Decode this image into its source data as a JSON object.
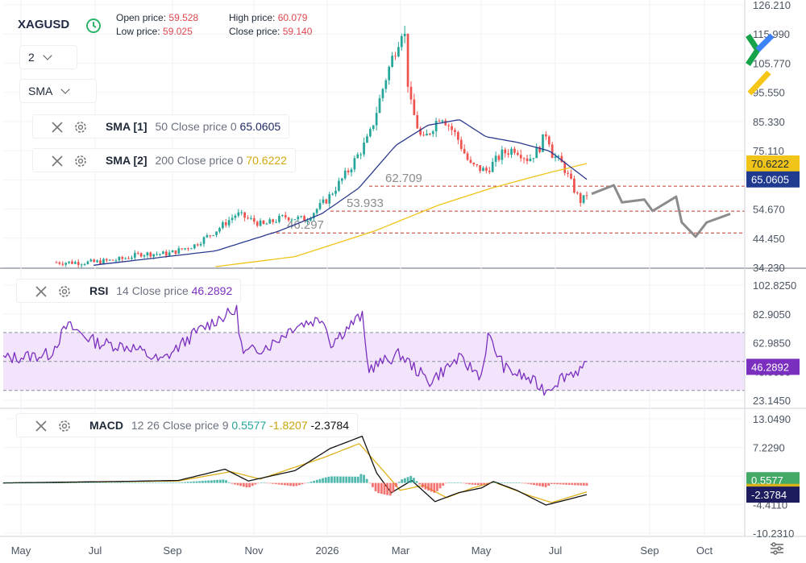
{
  "header": {
    "symbol": "XAGUSD",
    "open_label": "Open price:",
    "open_value": "59.528",
    "high_label": "High price:",
    "high_value": "60.079",
    "low_label": "Low price:",
    "low_value": "59.025",
    "close_label": "Close price:",
    "close_value": "59.140"
  },
  "controls": {
    "interval_value": "2",
    "indicator_value": "SMA"
  },
  "legends": {
    "sma1": {
      "name": "SMA [1]",
      "params": "50 Close price 0",
      "value": "65.0605"
    },
    "sma2": {
      "name": "SMA [2]",
      "params": "200 Close price 0",
      "value": "70.6222"
    },
    "rsi": {
      "name": "RSI",
      "params": "14 Close price",
      "value": "46.2892"
    },
    "macd": {
      "name": "MACD",
      "params": "12 26 Close price 9",
      "v1": "0.5577",
      "v2": "-1.8207",
      "v3": "-2.3784"
    }
  },
  "colors": {
    "up": "#26a69a",
    "down": "#ef5350",
    "sma50": "#2b3a8f",
    "sma200": "#f0c419",
    "rsi": "#7b2fbf",
    "rsi_band": "#f1e4fb",
    "macd": "#111111",
    "signal": "#e0b21c",
    "projection": "#8c8c8c",
    "level": "#c0392b"
  },
  "chart_data": [
    {
      "type": "candlestick",
      "panel": "price",
      "symbol": "XAGUSD",
      "x_ticks": [
        "May",
        "Jul",
        "Sep",
        "Nov",
        "2026",
        "Mar",
        "May",
        "Jul",
        "Sep",
        "Oct"
      ],
      "y_ticks": [
        "126.210",
        "115.990",
        "105.770",
        "95.550",
        "85.330",
        "75.110",
        "64.890",
        "54.670",
        "44.450",
        "34.230"
      ],
      "ylim": [
        34.23,
        126.21
      ],
      "last_values": {
        "sma200": "70.6222",
        "sma50": "65.0605"
      },
      "levels": [
        {
          "label": "62.709",
          "value": 62.709
        },
        {
          "label": "53.933",
          "value": 53.933
        },
        {
          "label": "46.297",
          "value": 46.297
        }
      ],
      "anchors": [
        {
          "t": 0.07,
          "v": 36
        },
        {
          "t": 0.12,
          "v": 37
        },
        {
          "t": 0.16,
          "v": 39
        },
        {
          "t": 0.21,
          "v": 39
        },
        {
          "t": 0.26,
          "v": 42
        },
        {
          "t": 0.3,
          "v": 47
        },
        {
          "t": 0.34,
          "v": 53
        },
        {
          "t": 0.39,
          "v": 49
        },
        {
          "t": 0.43,
          "v": 52
        },
        {
          "t": 0.47,
          "v": 51
        },
        {
          "t": 0.51,
          "v": 58
        },
        {
          "t": 0.55,
          "v": 68
        },
        {
          "t": 0.59,
          "v": 80
        },
        {
          "t": 0.62,
          "v": 100
        },
        {
          "t": 0.655,
          "v": 120
        },
        {
          "t": 0.665,
          "v": 93
        },
        {
          "t": 0.69,
          "v": 78
        },
        {
          "t": 0.725,
          "v": 88
        },
        {
          "t": 0.755,
          "v": 80
        },
        {
          "t": 0.78,
          "v": 70
        },
        {
          "t": 0.81,
          "v": 68
        },
        {
          "t": 0.84,
          "v": 74
        },
        {
          "t": 0.865,
          "v": 76
        },
        {
          "t": 0.89,
          "v": 72
        },
        {
          "t": 0.91,
          "v": 76
        },
        {
          "t": 0.925,
          "v": 82
        },
        {
          "t": 0.935,
          "v": 74
        },
        {
          "t": 0.955,
          "v": 70
        },
        {
          "t": 0.97,
          "v": 64
        },
        {
          "t": 0.98,
          "v": 60
        },
        {
          "t": 0.99,
          "v": 57
        },
        {
          "t": 1.0,
          "v": 60
        }
      ],
      "sma50_anchors": [
        {
          "t": 0.07,
          "v": 35
        },
        {
          "t": 0.3,
          "v": 40
        },
        {
          "t": 0.42,
          "v": 47
        },
        {
          "t": 0.5,
          "v": 53
        },
        {
          "t": 0.57,
          "v": 62
        },
        {
          "t": 0.64,
          "v": 77
        },
        {
          "t": 0.7,
          "v": 84
        },
        {
          "t": 0.76,
          "v": 86
        },
        {
          "t": 0.81,
          "v": 80
        },
        {
          "t": 0.87,
          "v": 78
        },
        {
          "t": 0.93,
          "v": 75
        },
        {
          "t": 1.0,
          "v": 65.06
        }
      ],
      "sma200_anchors": [
        {
          "t": 0.3,
          "v": 34.5
        },
        {
          "t": 0.45,
          "v": 38
        },
        {
          "t": 0.6,
          "v": 47
        },
        {
          "t": 0.72,
          "v": 56
        },
        {
          "t": 0.82,
          "v": 62
        },
        {
          "t": 0.92,
          "v": 67
        },
        {
          "t": 1.0,
          "v": 70.62
        }
      ],
      "projection": [
        {
          "t": 0.0,
          "v": 60
        },
        {
          "t": 0.16,
          "v": 63
        },
        {
          "t": 0.22,
          "v": 57
        },
        {
          "t": 0.38,
          "v": 58
        },
        {
          "t": 0.44,
          "v": 54
        },
        {
          "t": 0.61,
          "v": 59
        },
        {
          "t": 0.65,
          "v": 50
        },
        {
          "t": 0.75,
          "v": 45
        },
        {
          "t": 0.83,
          "v": 50
        },
        {
          "t": 1.0,
          "v": 53
        }
      ]
    },
    {
      "type": "line",
      "panel": "rsi",
      "y_ticks": [
        "102.8250",
        "82.9050",
        "62.9850",
        "43.0650",
        "23.1450"
      ],
      "ylim": [
        23.145,
        102.825
      ],
      "band": [
        30,
        70
      ],
      "last_value": "46.2892",
      "anchors": [
        {
          "t": 0.0,
          "v": 52
        },
        {
          "t": 0.08,
          "v": 55
        },
        {
          "t": 0.11,
          "v": 75
        },
        {
          "t": 0.16,
          "v": 63
        },
        {
          "t": 0.22,
          "v": 60
        },
        {
          "t": 0.27,
          "v": 50
        },
        {
          "t": 0.33,
          "v": 70
        },
        {
          "t": 0.37,
          "v": 80
        },
        {
          "t": 0.4,
          "v": 85
        },
        {
          "t": 0.41,
          "v": 55
        },
        {
          "t": 0.46,
          "v": 62
        },
        {
          "t": 0.5,
          "v": 75
        },
        {
          "t": 0.55,
          "v": 80
        },
        {
          "t": 0.56,
          "v": 62
        },
        {
          "t": 0.6,
          "v": 77
        },
        {
          "t": 0.615,
          "v": 82
        },
        {
          "t": 0.625,
          "v": 45
        },
        {
          "t": 0.68,
          "v": 55
        },
        {
          "t": 0.73,
          "v": 36
        },
        {
          "t": 0.78,
          "v": 52
        },
        {
          "t": 0.82,
          "v": 40
        },
        {
          "t": 0.83,
          "v": 68
        },
        {
          "t": 0.86,
          "v": 45
        },
        {
          "t": 0.9,
          "v": 38
        },
        {
          "t": 0.93,
          "v": 30
        },
        {
          "t": 0.96,
          "v": 40
        },
        {
          "t": 1.0,
          "v": 46.29
        }
      ]
    },
    {
      "type": "line",
      "panel": "macd",
      "y_ticks": [
        "13.0490",
        "7.2290",
        "1.4090",
        "-4.4110",
        "-10.2310"
      ],
      "ylim": [
        -10.231,
        13.049
      ],
      "last_values": {
        "histogram": "0.5577",
        "signal": "-1.8207",
        "macd": "-2.3784"
      },
      "macd_anchors": [
        {
          "t": 0.0,
          "v": 0
        },
        {
          "t": 0.2,
          "v": 0.3
        },
        {
          "t": 0.3,
          "v": 0.5
        },
        {
          "t": 0.38,
          "v": 2.8
        },
        {
          "t": 0.42,
          "v": 0.4
        },
        {
          "t": 0.5,
          "v": 2.5
        },
        {
          "t": 0.56,
          "v": 7.0
        },
        {
          "t": 0.615,
          "v": 9.5
        },
        {
          "t": 0.64,
          "v": 2
        },
        {
          "t": 0.665,
          "v": -2
        },
        {
          "t": 0.7,
          "v": 0.5
        },
        {
          "t": 0.74,
          "v": -3.8
        },
        {
          "t": 0.78,
          "v": -2
        },
        {
          "t": 0.82,
          "v": -1
        },
        {
          "t": 0.84,
          "v": 0.3
        },
        {
          "t": 0.88,
          "v": -1.5
        },
        {
          "t": 0.93,
          "v": -4.5
        },
        {
          "t": 0.97,
          "v": -3.3
        },
        {
          "t": 1.0,
          "v": -2.38
        }
      ],
      "signal_anchors": [
        {
          "t": 0.0,
          "v": 0
        },
        {
          "t": 0.3,
          "v": 0.4
        },
        {
          "t": 0.39,
          "v": 2.3
        },
        {
          "t": 0.44,
          "v": 0.8
        },
        {
          "t": 0.55,
          "v": 5.2
        },
        {
          "t": 0.61,
          "v": 8.0
        },
        {
          "t": 0.655,
          "v": 2
        },
        {
          "t": 0.68,
          "v": -1.5
        },
        {
          "t": 0.72,
          "v": -0.5
        },
        {
          "t": 0.76,
          "v": -3.0
        },
        {
          "t": 0.8,
          "v": -1.2
        },
        {
          "t": 0.84,
          "v": 0.2
        },
        {
          "t": 0.9,
          "v": -2.5
        },
        {
          "t": 0.94,
          "v": -4.0
        },
        {
          "t": 1.0,
          "v": -1.82
        }
      ]
    }
  ]
}
